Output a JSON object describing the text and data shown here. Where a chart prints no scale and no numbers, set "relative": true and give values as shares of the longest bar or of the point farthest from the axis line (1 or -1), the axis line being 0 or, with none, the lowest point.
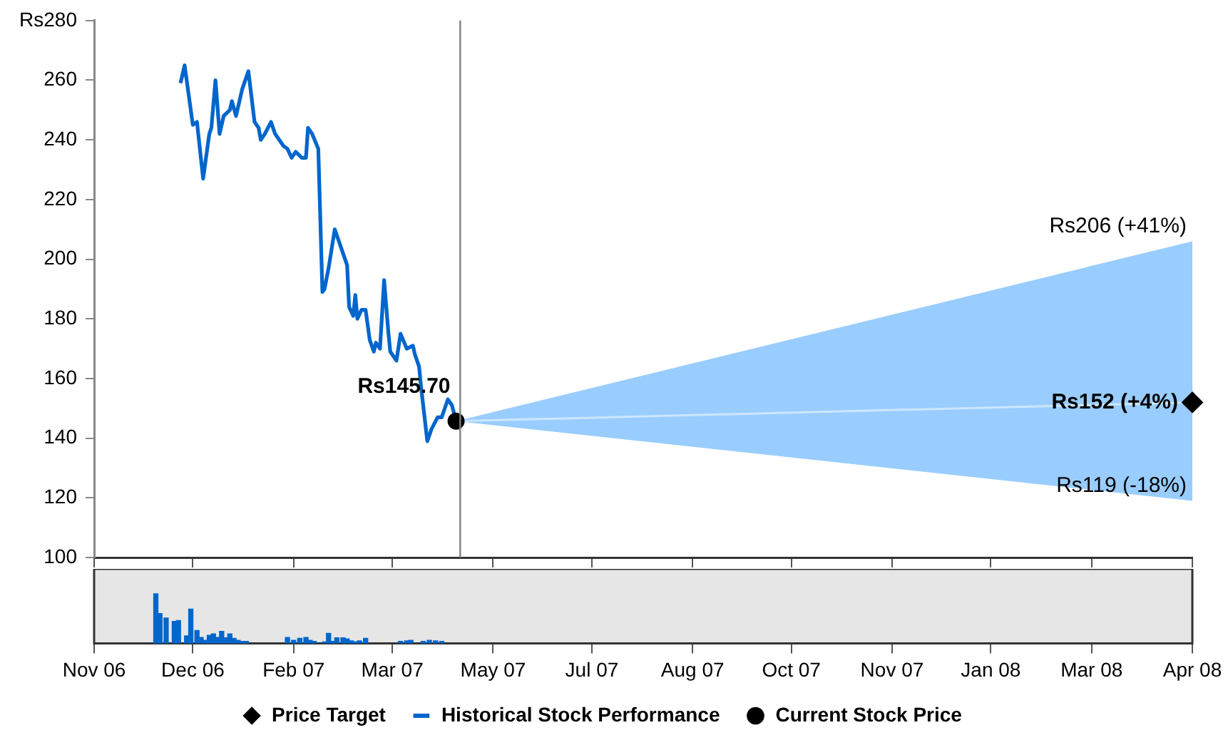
{
  "chart_data": [
    {
      "type": "line",
      "xlim": [
        "2006-11-05",
        "2008-04-22"
      ],
      "xticks": [
        "2006-11-05",
        "2006-12-23",
        "2007-02-10",
        "2007-03-30",
        "2007-05-18",
        "2007-07-05",
        "2007-08-23",
        "2007-10-10",
        "2007-11-28",
        "2008-01-15",
        "2008-03-04",
        "2008-04-22"
      ],
      "ylim": [
        100,
        280
      ],
      "yticks": [
        100,
        120,
        140,
        160,
        180,
        200,
        220,
        240,
        260,
        {
          "value": 280,
          "label": "Rs280"
        }
      ],
      "tick_labels": "y",
      "legend": "bottom",
      "series": [
        {
          "name": "Price Target",
          "type": "scatter",
          "marker": "diamond",
          "color": "#000000",
          "x": [
            "2008-04-22"
          ],
          "values": [
            152
          ]
        },
        {
          "name": "Historical Stock Performance",
          "type": "line",
          "marker": "none",
          "color": "#0066cc",
          "x": [
            "2006-12-17",
            "2006-12-19",
            "2006-12-22",
            "2006-12-23",
            "2006-12-25",
            "2006-12-28",
            "2006-12-31",
            "2007-01-01",
            "2007-01-03",
            "2007-01-05",
            "2007-01-07",
            "2007-01-10",
            "2007-01-11",
            "2007-01-13",
            "2007-01-16",
            "2007-01-19",
            "2007-01-22",
            "2007-01-24",
            "2007-01-25",
            "2007-01-27",
            "2007-01-30",
            "2007-02-01",
            "2007-02-05",
            "2007-02-07",
            "2007-02-09",
            "2007-02-11",
            "2007-02-14",
            "2007-02-16",
            "2007-02-17",
            "2007-02-19",
            "2007-02-22",
            "2007-02-24",
            "2007-02-25",
            "2007-02-27",
            "2007-03-02",
            "2007-03-06",
            "2007-03-08",
            "2007-03-09",
            "2007-03-11",
            "2007-03-12",
            "2007-03-13",
            "2007-03-15",
            "2007-03-17",
            "2007-03-19",
            "2007-03-21",
            "2007-03-22",
            "2007-03-24",
            "2007-03-26",
            "2007-03-28",
            "2007-03-29",
            "2007-04-01",
            "2007-04-03",
            "2007-04-06",
            "2007-04-09",
            "2007-04-10",
            "2007-04-12",
            "2007-04-13",
            "2007-04-16",
            "2007-04-18",
            "2007-04-21",
            "2007-04-23",
            "2007-04-26",
            "2007-04-28",
            "2007-04-30"
          ],
          "values": [
            259,
            265,
            250,
            245,
            246,
            227,
            242,
            244,
            260,
            242,
            248,
            250,
            253,
            248,
            257,
            263,
            246,
            244,
            240,
            242,
            246,
            242,
            238,
            237,
            234,
            236,
            234,
            234,
            244,
            242,
            237,
            189,
            190,
            197,
            210,
            202,
            198,
            184,
            181,
            188,
            180,
            183,
            183,
            173,
            169,
            172,
            170,
            193,
            176,
            169,
            166,
            175,
            170,
            171,
            168,
            164,
            157,
            139,
            143,
            147,
            147,
            153,
            151,
            145.7
          ]
        },
        {
          "type": "line",
          "marker": "none",
          "color": "#cce6ff",
          "x": [
            "2007-04-30",
            "2008-04-22"
          ],
          "values": [
            145.7,
            152
          ],
          "lower": [
            145.7,
            119
          ],
          "upper": [
            145.7,
            206
          ]
        },
        {
          "name": "Current Stock Price",
          "type": "scatter",
          "marker": "circle",
          "color": "#000000",
          "x": [
            "2007-04-30"
          ],
          "values": [
            145.7
          ]
        }
      ],
      "ref_lines": [
        {
          "axis": "x",
          "value": "2007-05-02",
          "color": "#808080"
        }
      ],
      "annotations": [
        {
          "text": "Rs145.70",
          "x": "2007-04-30",
          "y": 145.7
        },
        {
          "text": "Rs152 (+4%)",
          "x": "2008-04-22",
          "y": 152
        },
        {
          "text": "Rs206 (+41%)",
          "x": "2008-04-22",
          "y": 206
        },
        {
          "text": "Rs119 (-18%)",
          "x": "2008-04-22",
          "y": 119
        }
      ]
    },
    {
      "type": "bar",
      "relative": true,
      "color": "#0066cc",
      "xlim": [
        "2006-11-05",
        "2008-04-22"
      ],
      "xticks": [
        {
          "value": "2006-11-05",
          "label": "Nov 06"
        },
        {
          "value": "2006-12-23",
          "label": "Dec 06"
        },
        {
          "value": "2007-02-10",
          "label": "Feb 07"
        },
        {
          "value": "2007-03-30",
          "label": "Mar 07"
        },
        {
          "value": "2007-05-18",
          "label": "May 07"
        },
        {
          "value": "2007-07-05",
          "label": "Jul 07"
        },
        {
          "value": "2007-08-23",
          "label": "Aug 07"
        },
        {
          "value": "2007-10-10",
          "label": "Oct 07"
        },
        {
          "value": "2007-11-28",
          "label": "Nov 07"
        },
        {
          "value": "2008-01-15",
          "label": "Jan 08"
        },
        {
          "value": "2008-03-04",
          "label": "Mar 08"
        },
        {
          "value": "2008-04-22",
          "label": "Apr 08"
        }
      ],
      "tick_labels": "x",
      "x": [
        "2006-12-05",
        "2006-12-07",
        "2006-12-10",
        "2006-12-14",
        "2006-12-16",
        "2006-12-20",
        "2006-12-22",
        "2006-12-25",
        "2006-12-27",
        "2006-12-29",
        "2006-12-31",
        "2007-01-02",
        "2007-01-04",
        "2007-01-06",
        "2007-01-08",
        "2007-01-10",
        "2007-01-12",
        "2007-01-14",
        "2007-01-16",
        "2007-01-18",
        "2007-02-07",
        "2007-02-10",
        "2007-02-13",
        "2007-02-16",
        "2007-02-18",
        "2007-02-20",
        "2007-02-25",
        "2007-02-27",
        "2007-03-01",
        "2007-03-03",
        "2007-03-06",
        "2007-03-08",
        "2007-03-10",
        "2007-03-12",
        "2007-03-14",
        "2007-03-17",
        "2007-04-03",
        "2007-04-06",
        "2007-04-08",
        "2007-04-14",
        "2007-04-17",
        "2007-04-20",
        "2007-04-23"
      ],
      "values": [
        1,
        0.6,
        0.51,
        0.44,
        0.46,
        0.15,
        0.69,
        0.26,
        0.12,
        0.06,
        0.16,
        0.19,
        0.12,
        0.24,
        0.11,
        0.19,
        0.1,
        0.06,
        0.04,
        0.04,
        0.12,
        0.06,
        0.1,
        0.12,
        0.06,
        0.04,
        0.03,
        0.2,
        0.04,
        0.11,
        0.11,
        0.09,
        0.05,
        0.03,
        0.05,
        0.1,
        0.04,
        0.05,
        0.06,
        0.04,
        0.06,
        0.05,
        0.04
      ]
    }
  ]
}
